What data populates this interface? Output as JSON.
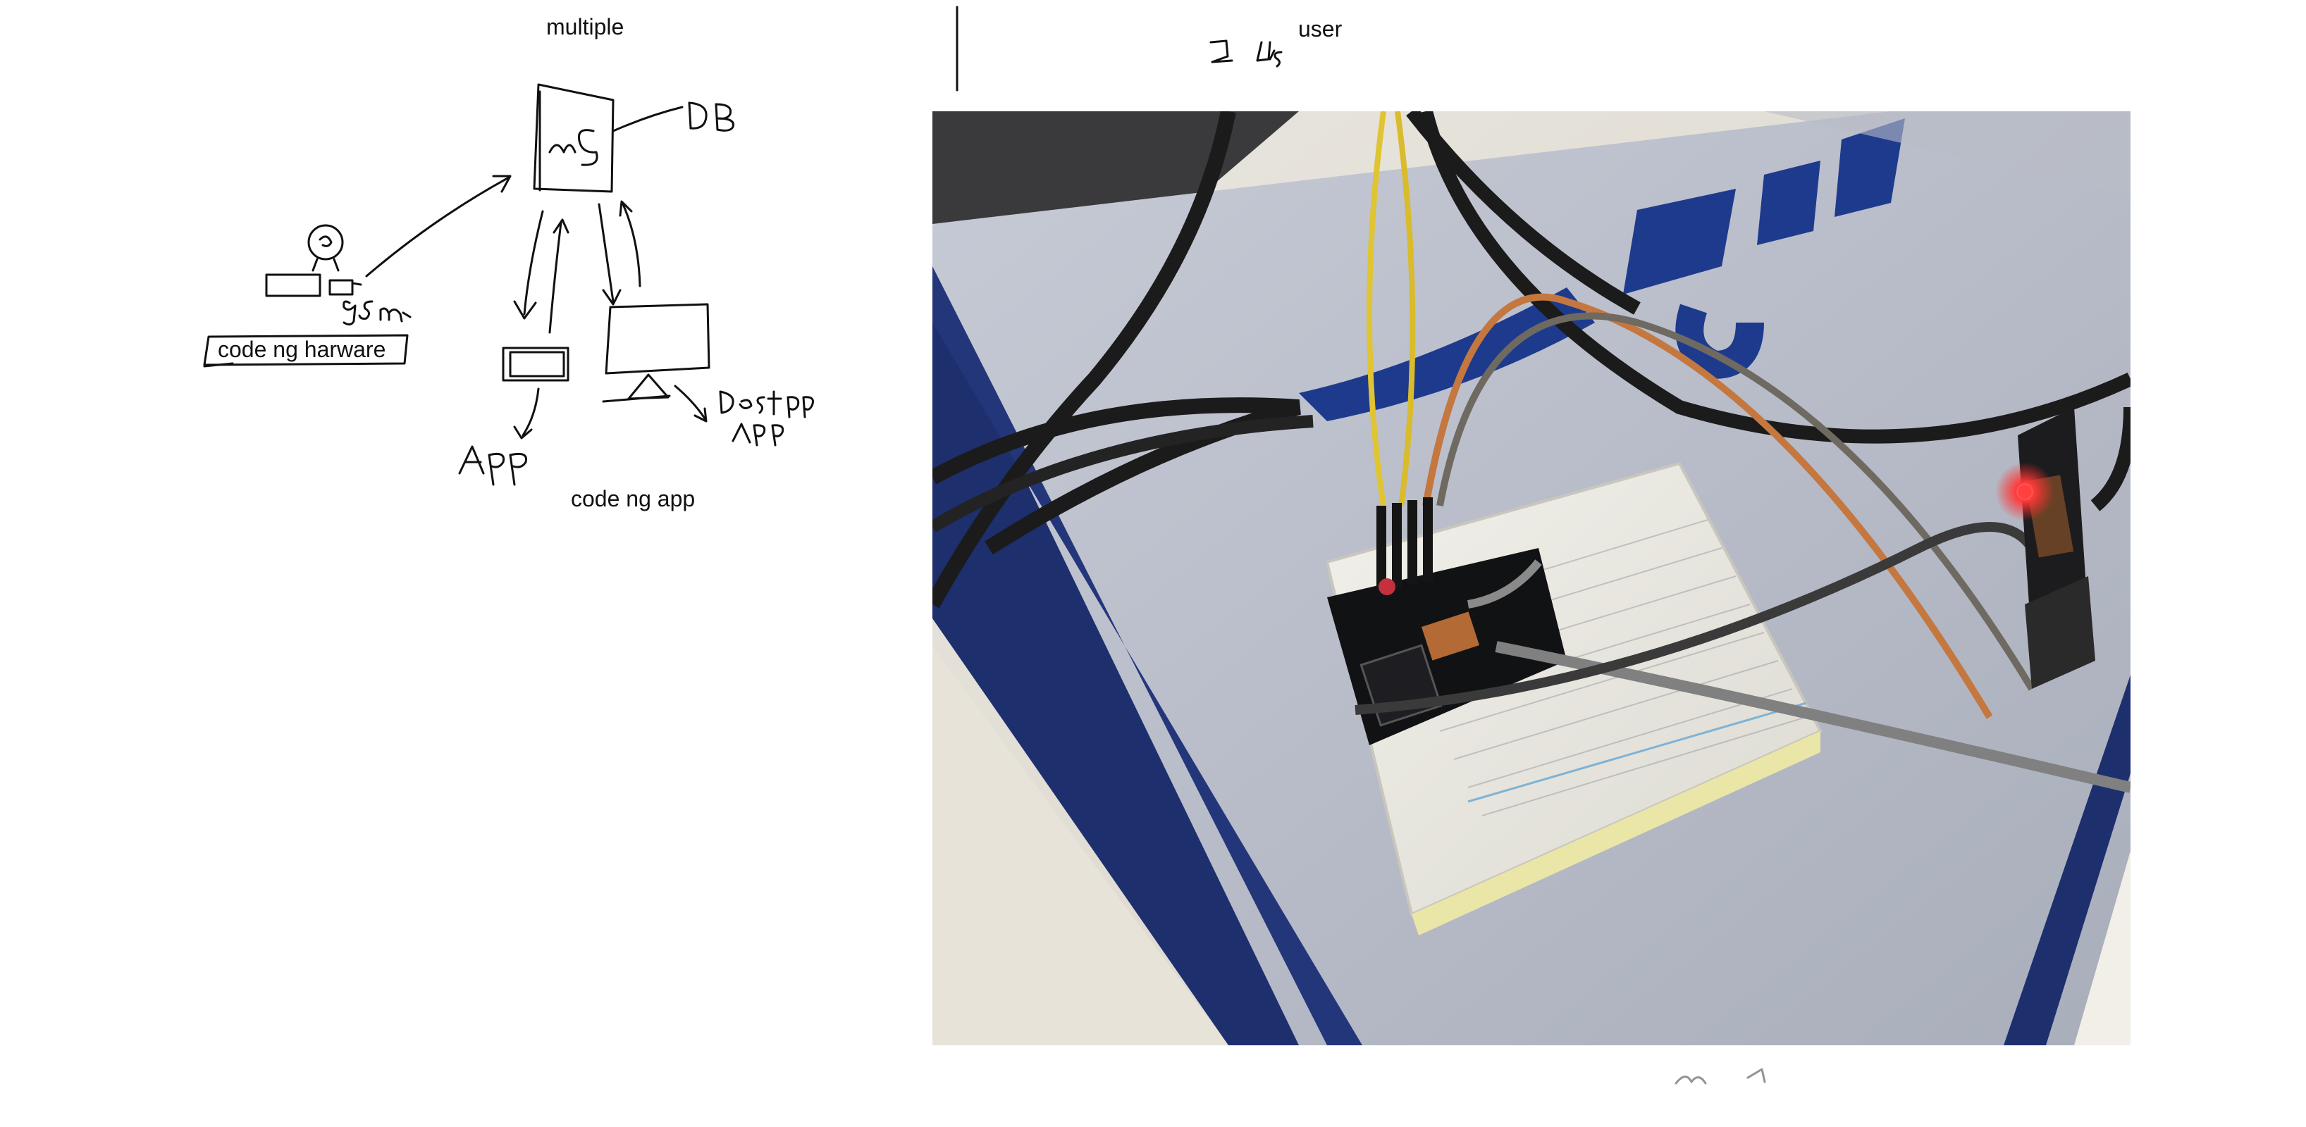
{
  "sketch": {
    "labels": {
      "multiple": "multiple",
      "code_hardware": "code ng harware",
      "code_app": "code ng app",
      "user": "user"
    }
  },
  "colors": {
    "ink": "#111111",
    "mat_blue": "#1e2f6e",
    "mat_grey": "#b7bcc8",
    "wire_yellow": "#e0c431",
    "wire_orange": "#c4773f",
    "wire_black": "#1b1b1b",
    "led_red": "#ff2a2a"
  }
}
